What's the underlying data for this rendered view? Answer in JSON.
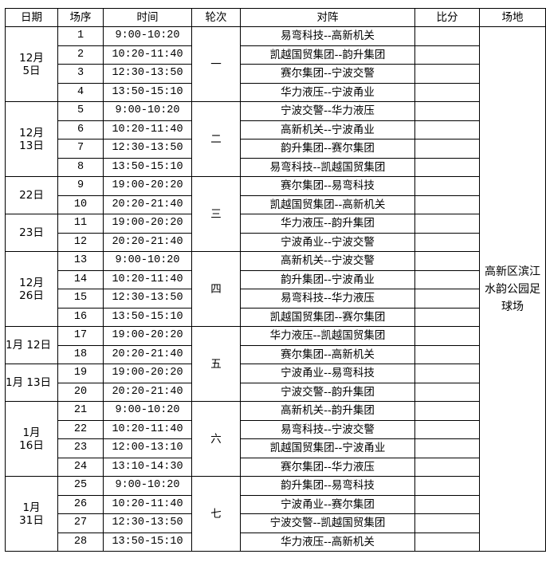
{
  "header": {
    "date": "日期",
    "seq": "场序",
    "time": "时间",
    "round": "轮次",
    "match": "对阵",
    "score": "比分",
    "venue": "场地"
  },
  "venue": "高新区滨江水韵公园足球场",
  "date_groups": [
    {
      "label": "12月\n5日",
      "rows": 4
    },
    {
      "label": "12月\n13日",
      "rows": 4
    },
    {
      "label": "22日",
      "rows": 2
    },
    {
      "label": "23日",
      "rows": 2
    },
    {
      "label": "12月\n26日",
      "rows": 4
    },
    {
      "label": "1月 12日",
      "rows": 2,
      "wrap": true
    },
    {
      "label": "1月 13日",
      "rows": 2,
      "wrap": true
    },
    {
      "label": "1月\n16日",
      "rows": 4
    },
    {
      "label": "1月\n31日",
      "rows": 4
    }
  ],
  "round_groups": [
    {
      "label": "一",
      "rows": 4
    },
    {
      "label": "二",
      "rows": 4
    },
    {
      "label": "三",
      "rows": 4
    },
    {
      "label": "四",
      "rows": 4
    },
    {
      "label": "五",
      "rows": 4
    },
    {
      "label": "六",
      "rows": 4
    },
    {
      "label": "七",
      "rows": 4
    }
  ],
  "matches": [
    {
      "seq": "1",
      "time": "9:00-10:20",
      "match": "易弯科技--高新机关",
      "score": ""
    },
    {
      "seq": "2",
      "time": "10:20-11:40",
      "match": "凯越国贸集团--韵升集团",
      "score": ""
    },
    {
      "seq": "3",
      "time": "12:30-13:50",
      "match": "赛尔集团--宁波交警",
      "score": ""
    },
    {
      "seq": "4",
      "time": "13:50-15:10",
      "match": "华力液压--宁波甬业",
      "score": ""
    },
    {
      "seq": "5",
      "time": "9:00-10:20",
      "match": "宁波交警--华力液压",
      "score": ""
    },
    {
      "seq": "6",
      "time": "10:20-11:40",
      "match": "高新机关--宁波甬业",
      "score": ""
    },
    {
      "seq": "7",
      "time": "12:30-13:50",
      "match": "韵升集团--赛尔集团",
      "score": ""
    },
    {
      "seq": "8",
      "time": "13:50-15:10",
      "match": "易弯科技--凯越国贸集团",
      "score": ""
    },
    {
      "seq": "9",
      "time": "19:00-20:20",
      "match": "赛尔集团--易弯科技",
      "score": ""
    },
    {
      "seq": "10",
      "time": "20:20-21:40",
      "match": "凯越国贸集团--高新机关",
      "score": ""
    },
    {
      "seq": "11",
      "time": "19:00-20:20",
      "match": "华力液压--韵升集团",
      "score": ""
    },
    {
      "seq": "12",
      "time": "20:20-21:40",
      "match": "宁波甬业--宁波交警",
      "score": ""
    },
    {
      "seq": "13",
      "time": "9:00-10:20",
      "match": "高新机关--宁波交警",
      "score": ""
    },
    {
      "seq": "14",
      "time": "10:20-11:40",
      "match": "韵升集团--宁波甬业",
      "score": ""
    },
    {
      "seq": "15",
      "time": "12:30-13:50",
      "match": "易弯科技--华力液压",
      "score": ""
    },
    {
      "seq": "16",
      "time": "13:50-15:10",
      "match": "凯越国贸集团--赛尔集团",
      "score": ""
    },
    {
      "seq": "17",
      "time": "19:00-20:20",
      "match": "华力液压--凯越国贸集团",
      "score": ""
    },
    {
      "seq": "18",
      "time": "20:20-21:40",
      "match": "赛尔集团--高新机关",
      "score": ""
    },
    {
      "seq": "19",
      "time": "19:00-20:20",
      "match": "宁波甬业--易弯科技",
      "score": ""
    },
    {
      "seq": "20",
      "time": "20:20-21:40",
      "match": "宁波交警--韵升集团",
      "score": ""
    },
    {
      "seq": "21",
      "time": "9:00-10:20",
      "match": "高新机关--韵升集团",
      "score": ""
    },
    {
      "seq": "22",
      "time": "10:20-11:40",
      "match": "易弯科技--宁波交警",
      "score": ""
    },
    {
      "seq": "23",
      "time": "12:00-13:10",
      "match": "凯越国贸集团--宁波甬业",
      "score": ""
    },
    {
      "seq": "24",
      "time": "13:10-14:30",
      "match": "赛尔集团--华力液压",
      "score": ""
    },
    {
      "seq": "25",
      "time": "9:00-10:20",
      "match": "韵升集团--易弯科技",
      "score": ""
    },
    {
      "seq": "26",
      "time": "10:20-11:40",
      "match": "宁波甬业--赛尔集团",
      "score": ""
    },
    {
      "seq": "27",
      "time": "12:30-13:50",
      "match": "宁波交警--凯越国贸集团",
      "score": ""
    },
    {
      "seq": "28",
      "time": "13:50-15:10",
      "match": "华力液压--高新机关",
      "score": ""
    }
  ]
}
